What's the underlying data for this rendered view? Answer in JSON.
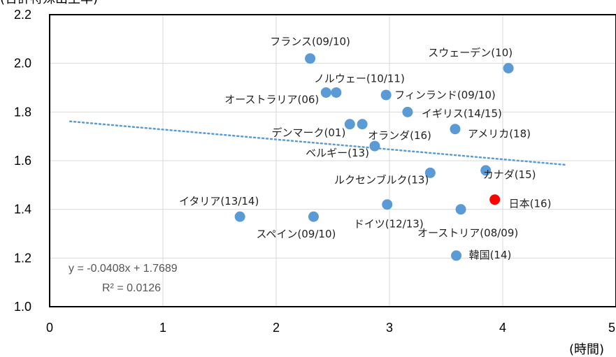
{
  "chart_data": {
    "type": "scatter",
    "ylabel": "(合計特殊出生率)",
    "xlabel": "(時間)",
    "xlim": [
      0,
      5
    ],
    "ylim": [
      1.0,
      2.2
    ],
    "x_ticks": [
      "0",
      "1",
      "2",
      "3",
      "4",
      "5"
    ],
    "y_ticks": [
      "1.0",
      "1.2",
      "1.4",
      "1.6",
      "1.8",
      "2.0",
      "2.2"
    ],
    "grid": true,
    "colors": {
      "point": "#5b9bd5",
      "highlight": "#ff0000",
      "trendline": "#5b9bd5",
      "axis": "#000000",
      "grid": "#d9d9d9"
    },
    "points": [
      {
        "label": "フランス(09/10)",
        "x": 2.3,
        "y": 2.02
      },
      {
        "label": "スウェーデン(10)",
        "x": 4.05,
        "y": 1.98
      },
      {
        "label": "ノルウェー(10/11)",
        "x": 2.53,
        "y": 1.88
      },
      {
        "label": "オーストラリア(06)",
        "x": 2.44,
        "y": 1.88
      },
      {
        "label": "フィンランド(09/10)",
        "x": 2.97,
        "y": 1.87
      },
      {
        "label": "イギリス(14/15)",
        "x": 3.16,
        "y": 1.8
      },
      {
        "label": "デンマーク(01)",
        "x": 2.65,
        "y": 1.75
      },
      {
        "label": "オランダ(16)",
        "x": 2.76,
        "y": 1.75
      },
      {
        "label": "アメリカ(18)",
        "x": 3.58,
        "y": 1.73
      },
      {
        "label": "ベルギー(13)",
        "x": 2.87,
        "y": 1.66
      },
      {
        "label": "ルクセンブルク(13)",
        "x": 3.36,
        "y": 1.55
      },
      {
        "label": "カナダ(15)",
        "x": 3.85,
        "y": 1.56
      },
      {
        "label": "日本(16)",
        "x": 3.93,
        "y": 1.44,
        "highlight": true
      },
      {
        "label": "イタリア(13/14)",
        "x": 1.68,
        "y": 1.37
      },
      {
        "label": "スペイン(09/10)",
        "x": 2.33,
        "y": 1.37
      },
      {
        "label": "ドイツ(12/13)",
        "x": 2.98,
        "y": 1.42
      },
      {
        "label": "オーストリア(08/09)",
        "x": 3.63,
        "y": 1.4
      },
      {
        "label": "韓国(14)",
        "x": 3.59,
        "y": 1.21
      }
    ],
    "trendline": {
      "slope": -0.0408,
      "intercept": 1.7689,
      "x_range": [
        0.18,
        4.55
      ]
    },
    "equation_text": "y = -0.0408x + 1.7689",
    "r2_text": "R² = 0.0126"
  }
}
